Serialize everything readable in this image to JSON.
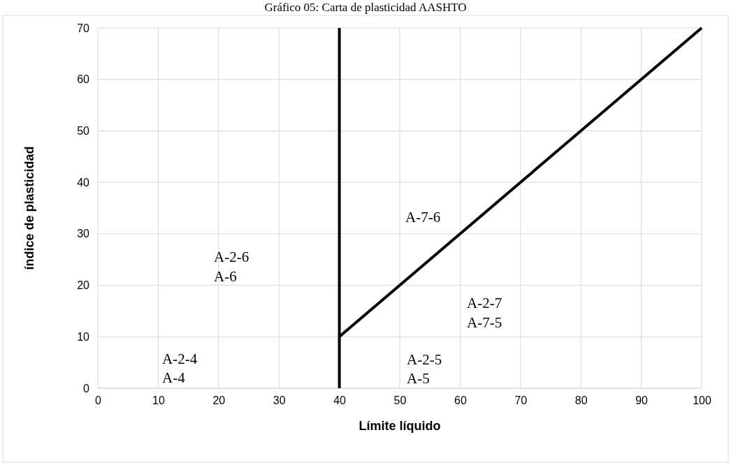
{
  "chart_data": {
    "type": "line",
    "title": "Gráfico 05: Carta de plasticidad AASHTO",
    "xlabel": "Límite líquido",
    "ylabel": "índice de plasticidad",
    "x": [
      40,
      100
    ],
    "series": [
      {
        "color": "#000000",
        "values": [
          10,
          70
        ]
      }
    ],
    "xlim": [
      0,
      100
    ],
    "xticks": [
      0,
      10,
      20,
      30,
      40,
      50,
      60,
      70,
      80,
      90,
      100
    ],
    "ylim": [
      0,
      70
    ],
    "yticks": [
      0,
      10,
      20,
      30,
      40,
      50,
      60,
      70
    ],
    "grid": true,
    "marker": "none",
    "line_style": "solid",
    "ref_lines": [
      {
        "axis": "x",
        "value": 40,
        "color": "#000000"
      }
    ],
    "annotations": [
      "A-2-4",
      "A-4",
      "A-2-6",
      "A-6",
      "A-7-6",
      "A-2-7",
      "A-7-5",
      "A-2-5",
      "A-5"
    ]
  }
}
